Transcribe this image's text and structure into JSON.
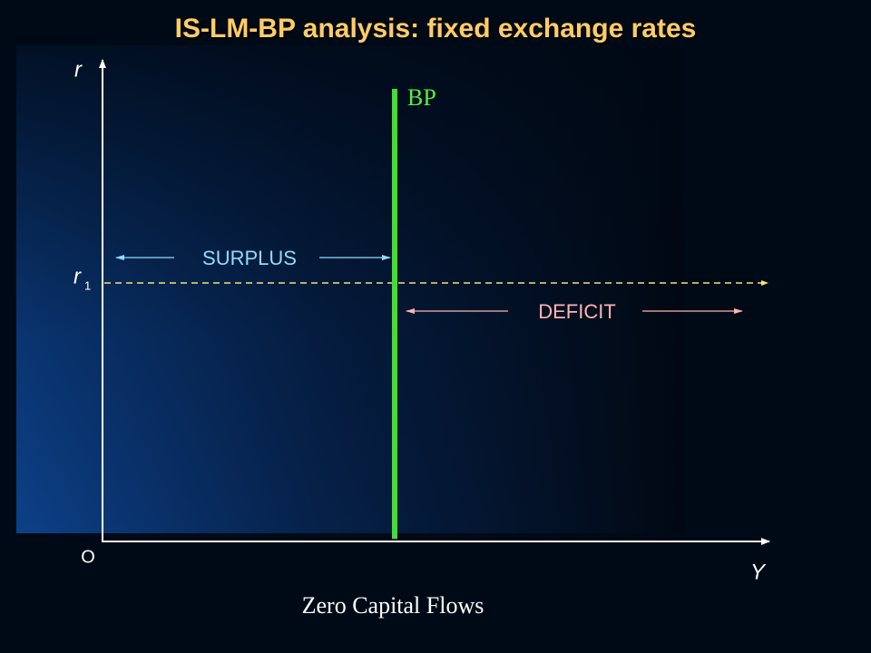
{
  "title": "IS-LM-BP analysis: fixed exchange rates",
  "axes": {
    "y_label": "r",
    "x_label": "Y",
    "origin": "O"
  },
  "curves": {
    "bp": "BP"
  },
  "levels": {
    "r1": {
      "symbol": "r",
      "subscript": "1"
    }
  },
  "regions": {
    "surplus": "SURPLUS",
    "deficit": "DEFICIT"
  },
  "caption": "Zero Capital Flows"
}
